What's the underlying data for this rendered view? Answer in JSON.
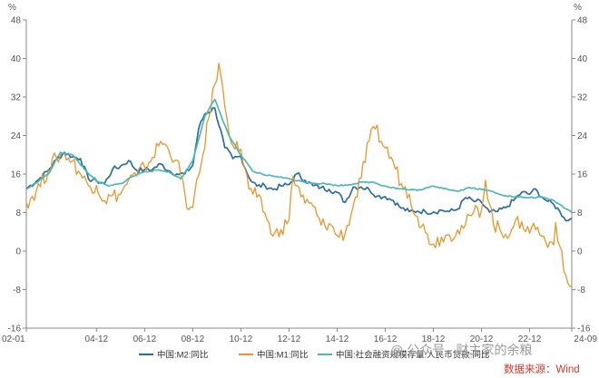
{
  "chart_data": {
    "type": "line",
    "unit_left": "%",
    "unit_right": "%",
    "ylim": [
      -16,
      48
    ],
    "yticks": [
      -16,
      -8,
      0,
      8,
      16,
      24,
      32,
      40,
      48
    ],
    "xlim": [
      "2002-01",
      "2024-09"
    ],
    "xticks": [
      "02-01",
      "04-12",
      "06-12",
      "08-12",
      "10-12",
      "12-12",
      "14-12",
      "16-12",
      "18-12",
      "20-12",
      "22-12",
      "24-09"
    ],
    "grid": false,
    "legend_position": "bottom",
    "series": [
      {
        "name": "中国:M2:同比",
        "color": "#2e6e9e",
        "points": [
          [
            "2002-01",
            13.0
          ],
          [
            "2002-06",
            14.5
          ],
          [
            "2002-12",
            16.8
          ],
          [
            "2003-04",
            19.0
          ],
          [
            "2003-08",
            20.5
          ],
          [
            "2003-12",
            19.6
          ],
          [
            "2004-04",
            19.2
          ],
          [
            "2004-08",
            15.0
          ],
          [
            "2004-12",
            14.6
          ],
          [
            "2005-04",
            14.0
          ],
          [
            "2005-08",
            17.0
          ],
          [
            "2005-12",
            17.6
          ],
          [
            "2006-04",
            18.8
          ],
          [
            "2006-08",
            16.8
          ],
          [
            "2006-12",
            16.9
          ],
          [
            "2007-04",
            17.0
          ],
          [
            "2007-08",
            18.1
          ],
          [
            "2007-12",
            16.7
          ],
          [
            "2008-04",
            16.0
          ],
          [
            "2008-08",
            16.0
          ],
          [
            "2008-12",
            17.8
          ],
          [
            "2009-03",
            25.5
          ],
          [
            "2009-06",
            28.5
          ],
          [
            "2009-11",
            29.7
          ],
          [
            "2010-04",
            21.5
          ],
          [
            "2010-08",
            19.2
          ],
          [
            "2010-12",
            19.7
          ],
          [
            "2011-04",
            15.3
          ],
          [
            "2011-08",
            13.5
          ],
          [
            "2011-12",
            13.6
          ],
          [
            "2012-04",
            12.8
          ],
          [
            "2012-08",
            13.5
          ],
          [
            "2012-12",
            13.8
          ],
          [
            "2013-04",
            16.1
          ],
          [
            "2013-08",
            14.7
          ],
          [
            "2013-12",
            13.6
          ],
          [
            "2014-04",
            13.2
          ],
          [
            "2014-08",
            12.8
          ],
          [
            "2014-12",
            12.2
          ],
          [
            "2015-04",
            10.1
          ],
          [
            "2015-08",
            13.3
          ],
          [
            "2015-12",
            13.3
          ],
          [
            "2016-04",
            12.8
          ],
          [
            "2016-08",
            11.4
          ],
          [
            "2016-12",
            11.3
          ],
          [
            "2017-04",
            10.5
          ],
          [
            "2017-08",
            8.9
          ],
          [
            "2017-12",
            8.2
          ],
          [
            "2018-04",
            8.3
          ],
          [
            "2018-08",
            8.2
          ],
          [
            "2018-12",
            8.1
          ],
          [
            "2019-04",
            8.5
          ],
          [
            "2019-08",
            8.2
          ],
          [
            "2019-12",
            8.7
          ],
          [
            "2020-04",
            11.1
          ],
          [
            "2020-08",
            10.4
          ],
          [
            "2020-12",
            10.1
          ],
          [
            "2021-04",
            8.1
          ],
          [
            "2021-08",
            8.2
          ],
          [
            "2021-12",
            9.0
          ],
          [
            "2022-04",
            10.5
          ],
          [
            "2022-08",
            12.2
          ],
          [
            "2022-12",
            11.8
          ],
          [
            "2023-02",
            12.9
          ],
          [
            "2023-06",
            11.3
          ],
          [
            "2023-09",
            10.3
          ],
          [
            "2023-12",
            9.7
          ],
          [
            "2024-03",
            8.3
          ],
          [
            "2024-05",
            7.0
          ],
          [
            "2024-07",
            6.3
          ],
          [
            "2024-09",
            6.8
          ]
        ]
      },
      {
        "name": "中国:M1:同比",
        "color": "#e8962e",
        "points": [
          [
            "2002-01",
            10.0
          ],
          [
            "2002-06",
            12.5
          ],
          [
            "2002-12",
            16.8
          ],
          [
            "2003-04",
            19.5
          ],
          [
            "2003-08",
            20.3
          ],
          [
            "2003-12",
            18.7
          ],
          [
            "2004-04",
            16.0
          ],
          [
            "2004-08",
            13.6
          ],
          [
            "2004-12",
            13.6
          ],
          [
            "2005-04",
            10.5
          ],
          [
            "2005-08",
            11.5
          ],
          [
            "2005-12",
            11.8
          ],
          [
            "2006-04",
            14.8
          ],
          [
            "2006-08",
            15.6
          ],
          [
            "2006-12",
            17.5
          ],
          [
            "2007-04",
            19.5
          ],
          [
            "2007-08",
            22.8
          ],
          [
            "2007-12",
            21.0
          ],
          [
            "2008-04",
            18.9
          ],
          [
            "2008-08",
            12.0
          ],
          [
            "2008-10",
            8.6
          ],
          [
            "2008-12",
            9.1
          ],
          [
            "2009-04",
            17.5
          ],
          [
            "2009-08",
            27.7
          ],
          [
            "2009-11",
            34.6
          ],
          [
            "2010-01",
            39.0
          ],
          [
            "2010-04",
            30.0
          ],
          [
            "2010-08",
            21.9
          ],
          [
            "2010-12",
            21.2
          ],
          [
            "2011-04",
            12.9
          ],
          [
            "2011-08",
            11.2
          ],
          [
            "2011-12",
            7.9
          ],
          [
            "2012-04",
            3.1
          ],
          [
            "2012-08",
            4.5
          ],
          [
            "2012-12",
            6.5
          ],
          [
            "2013-02",
            15.6
          ],
          [
            "2013-08",
            9.9
          ],
          [
            "2013-12",
            9.3
          ],
          [
            "2014-04",
            5.4
          ],
          [
            "2014-08",
            5.7
          ],
          [
            "2014-12",
            3.2
          ],
          [
            "2015-04",
            3.7
          ],
          [
            "2015-08",
            9.3
          ],
          [
            "2015-12",
            15.2
          ],
          [
            "2016-04",
            22.9
          ],
          [
            "2016-07",
            25.4
          ],
          [
            "2016-12",
            21.4
          ],
          [
            "2017-04",
            18.5
          ],
          [
            "2017-08",
            14.0
          ],
          [
            "2017-12",
            11.8
          ],
          [
            "2018-04",
            7.2
          ],
          [
            "2018-08",
            3.9
          ],
          [
            "2018-12",
            1.5
          ],
          [
            "2019-04",
            2.9
          ],
          [
            "2019-08",
            3.4
          ],
          [
            "2019-12",
            4.4
          ],
          [
            "2020-04",
            5.5
          ],
          [
            "2020-08",
            8.0
          ],
          [
            "2020-12",
            8.6
          ],
          [
            "2021-02",
            14.7
          ],
          [
            "2021-06",
            5.5
          ],
          [
            "2021-12",
            3.5
          ],
          [
            "2022-04",
            5.1
          ],
          [
            "2022-08",
            6.1
          ],
          [
            "2022-12",
            3.7
          ],
          [
            "2023-02",
            5.8
          ],
          [
            "2023-06",
            3.1
          ],
          [
            "2023-10",
            1.9
          ],
          [
            "2023-12",
            1.3
          ],
          [
            "2024-01",
            5.9
          ],
          [
            "2024-03",
            1.1
          ],
          [
            "2024-05",
            -4.2
          ],
          [
            "2024-07",
            -6.6
          ],
          [
            "2024-09",
            -7.4
          ]
        ]
      },
      {
        "name": "中国:社会融资规模存量:人民币贷款:同比",
        "color": "#4fb8b6",
        "points": [
          [
            "2002-01",
            12.8
          ],
          [
            "2002-12",
            16.0
          ],
          [
            "2003-06",
            20.5
          ],
          [
            "2003-12",
            20.0
          ],
          [
            "2004-06",
            17.0
          ],
          [
            "2004-12",
            14.5
          ],
          [
            "2005-06",
            13.5
          ],
          [
            "2005-12",
            14.0
          ],
          [
            "2006-06",
            15.5
          ],
          [
            "2006-12",
            16.5
          ],
          [
            "2007-06",
            16.8
          ],
          [
            "2007-12",
            16.5
          ],
          [
            "2008-06",
            15.0
          ],
          [
            "2008-12",
            18.8
          ],
          [
            "2009-06",
            28.0
          ],
          [
            "2009-11",
            31.5
          ],
          [
            "2010-06",
            24.0
          ],
          [
            "2010-12",
            19.9
          ],
          [
            "2011-06",
            16.5
          ],
          [
            "2011-12",
            15.8
          ],
          [
            "2012-06",
            15.5
          ],
          [
            "2012-12",
            15.0
          ],
          [
            "2013-06",
            14.5
          ],
          [
            "2013-12",
            14.1
          ],
          [
            "2014-06",
            14.0
          ],
          [
            "2014-12",
            13.6
          ],
          [
            "2015-06",
            13.8
          ],
          [
            "2015-12",
            14.3
          ],
          [
            "2016-06",
            14.3
          ],
          [
            "2016-12",
            13.5
          ],
          [
            "2017-06",
            13.0
          ],
          [
            "2017-12",
            12.7
          ],
          [
            "2018-06",
            12.7
          ],
          [
            "2018-12",
            13.5
          ],
          [
            "2019-06",
            13.0
          ],
          [
            "2019-12",
            12.4
          ],
          [
            "2020-06",
            13.2
          ],
          [
            "2020-12",
            12.8
          ],
          [
            "2021-06",
            12.3
          ],
          [
            "2021-12",
            11.5
          ],
          [
            "2022-06",
            11.2
          ],
          [
            "2022-12",
            11.1
          ],
          [
            "2023-06",
            11.2
          ],
          [
            "2023-12",
            10.5
          ],
          [
            "2024-03",
            9.7
          ],
          [
            "2024-06",
            8.8
          ],
          [
            "2024-09",
            8.1
          ]
        ]
      }
    ]
  },
  "watermark": "@ 公众号 · 财主家的余粮",
  "source": "数据来源：Wind"
}
